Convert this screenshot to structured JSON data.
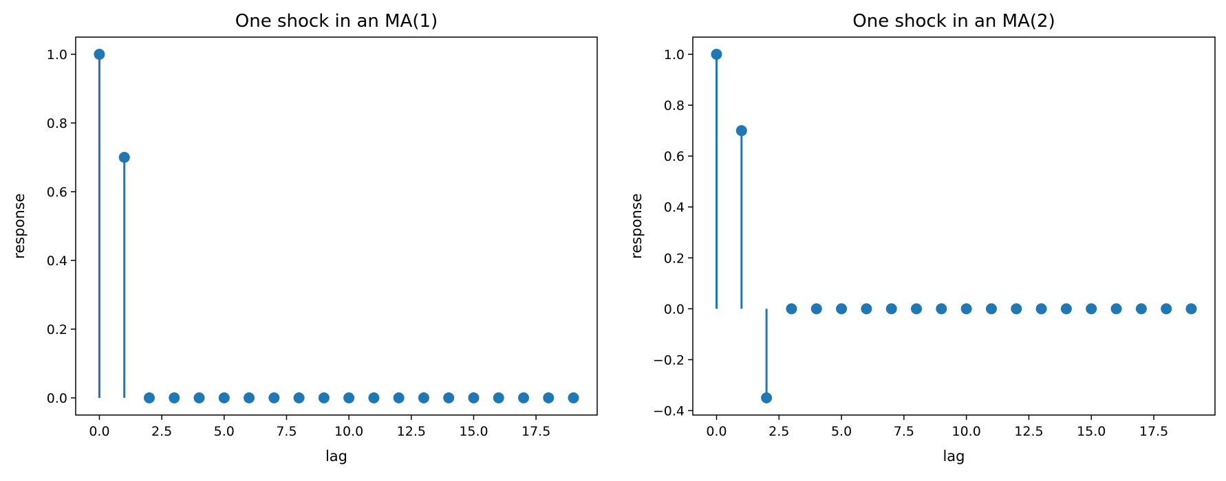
{
  "chart_data": [
    {
      "type": "stem",
      "title": "One shock in an MA(1)",
      "xlabel": "lag",
      "ylabel": "response",
      "x": [
        0,
        1,
        2,
        3,
        4,
        5,
        6,
        7,
        8,
        9,
        10,
        11,
        12,
        13,
        14,
        15,
        16,
        17,
        18,
        19
      ],
      "y": [
        1.0,
        0.7,
        0,
        0,
        0,
        0,
        0,
        0,
        0,
        0,
        0,
        0,
        0,
        0,
        0,
        0,
        0,
        0,
        0,
        0
      ],
      "xlim": [
        -0.95,
        19.95
      ],
      "ylim": [
        -0.05,
        1.05
      ],
      "xticks": [
        0.0,
        2.5,
        5.0,
        7.5,
        10.0,
        12.5,
        15.0,
        17.5
      ],
      "xtick_labels": [
        "0.0",
        "2.5",
        "5.0",
        "7.5",
        "10.0",
        "12.5",
        "15.0",
        "17.5"
      ],
      "yticks": [
        0.0,
        0.2,
        0.4,
        0.6,
        0.8,
        1.0
      ],
      "ytick_labels": [
        "0.0",
        "0.2",
        "0.4",
        "0.6",
        "0.8",
        "1.0"
      ],
      "color": "#1f77b4",
      "grid": false
    },
    {
      "type": "stem",
      "title": "One shock in an MA(2)",
      "xlabel": "lag",
      "ylabel": "response",
      "x": [
        0,
        1,
        2,
        3,
        4,
        5,
        6,
        7,
        8,
        9,
        10,
        11,
        12,
        13,
        14,
        15,
        16,
        17,
        18,
        19
      ],
      "y": [
        1.0,
        0.7,
        -0.35,
        0,
        0,
        0,
        0,
        0,
        0,
        0,
        0,
        0,
        0,
        0,
        0,
        0,
        0,
        0,
        0,
        0
      ],
      "xlim": [
        -0.95,
        19.95
      ],
      "ylim": [
        -0.4175,
        1.0675
      ],
      "xticks": [
        0.0,
        2.5,
        5.0,
        7.5,
        10.0,
        12.5,
        15.0,
        17.5
      ],
      "xtick_labels": [
        "0.0",
        "2.5",
        "5.0",
        "7.5",
        "10.0",
        "12.5",
        "15.0",
        "17.5"
      ],
      "yticks": [
        -0.4,
        -0.2,
        0.0,
        0.2,
        0.4,
        0.6,
        0.8,
        1.0
      ],
      "ytick_labels": [
        "−0.4",
        "−0.2",
        "0.0",
        "0.2",
        "0.4",
        "0.6",
        "0.8",
        "1.0"
      ],
      "color": "#1f77b4",
      "grid": false
    }
  ]
}
